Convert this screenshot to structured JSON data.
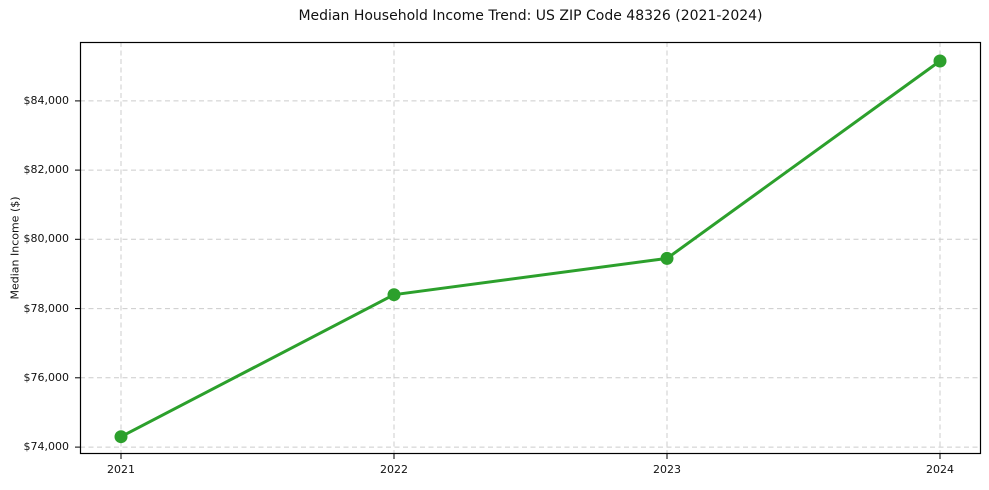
{
  "chart_data": {
    "type": "line",
    "title": "Median Household Income Trend: US ZIP Code 48326 (2021-2024)",
    "xlabel": "",
    "ylabel": "Median Income ($)",
    "x": [
      2021,
      2022,
      2023,
      2024
    ],
    "x_tick_labels": [
      "2021",
      "2022",
      "2023",
      "2024"
    ],
    "series": [
      {
        "values": [
          74300,
          78400,
          79450,
          85150
        ],
        "color": "#2ca02c",
        "marker": "circle",
        "line_width": 3,
        "marker_radius": 6.5
      }
    ],
    "y_ticks": [
      74000,
      76000,
      78000,
      80000,
      82000,
      84000
    ],
    "y_tick_labels": [
      "$74,000",
      "$76,000",
      "$78,000",
      "$80,000",
      "$82,000",
      "$84,000"
    ],
    "xlim": [
      2020.85,
      2024.15
    ],
    "ylim": [
      73800,
      85700
    ],
    "grid": true,
    "grid_style": "dashed",
    "legend_position": "none",
    "colors": {
      "line": "#2ca02c",
      "grid": "#cccccc",
      "axis": "#000000",
      "text": "#111111",
      "background": "#ffffff"
    }
  }
}
